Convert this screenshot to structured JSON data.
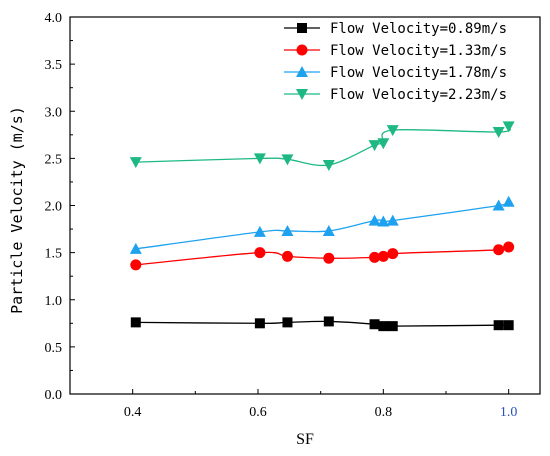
{
  "chart_data": {
    "type": "line",
    "title": "",
    "xlabel": "SF",
    "ylabel": "Particle Velocity (m/s)",
    "xlim": [
      0.3,
      1.05
    ],
    "ylim": [
      0.0,
      4.0
    ],
    "x_ticks": [
      0.4,
      0.6,
      0.8,
      1.0
    ],
    "x_tick_labels": [
      "0.4",
      "0.6",
      "0.8",
      "1.0"
    ],
    "y_ticks": [
      0.0,
      0.5,
      1.0,
      1.5,
      2.0,
      2.5,
      3.0,
      3.5,
      4.0
    ],
    "y_tick_labels": [
      "0.0",
      "0.5",
      "1.0",
      "1.5",
      "2.0",
      "2.5",
      "3.0",
      "3.5",
      "4.0"
    ],
    "legend_position": "top-right",
    "grid": false,
    "series": [
      {
        "name": "Flow Velocity=0.89m/s",
        "color": "#000000",
        "marker": "square",
        "x": [
          0.405,
          0.603,
          0.647,
          0.713,
          0.786,
          0.8,
          0.815,
          0.984,
          1.0
        ],
        "y": [
          0.76,
          0.75,
          0.76,
          0.77,
          0.74,
          0.72,
          0.72,
          0.73,
          0.73
        ]
      },
      {
        "name": "Flow Velocity=1.33m/s",
        "color": "#ff0000",
        "marker": "circle",
        "x": [
          0.405,
          0.603,
          0.647,
          0.713,
          0.786,
          0.8,
          0.815,
          0.984,
          1.0
        ],
        "y": [
          1.37,
          1.5,
          1.46,
          1.44,
          1.45,
          1.46,
          1.49,
          1.53,
          1.56
        ]
      },
      {
        "name": "Flow Velocity=1.78m/s",
        "color": "#1ea2f0",
        "marker": "triangle-up",
        "x": [
          0.405,
          0.603,
          0.647,
          0.713,
          0.786,
          0.8,
          0.815,
          0.984,
          1.0
        ],
        "y": [
          1.54,
          1.72,
          1.73,
          1.73,
          1.84,
          1.83,
          1.84,
          2.0,
          2.04
        ]
      },
      {
        "name": "Flow Velocity=2.23m/s",
        "color": "#1eb983",
        "marker": "triangle-down",
        "x": [
          0.405,
          0.603,
          0.647,
          0.713,
          0.786,
          0.8,
          0.815,
          0.984,
          1.0
        ],
        "y": [
          2.46,
          2.5,
          2.49,
          2.43,
          2.64,
          2.66,
          2.8,
          2.78,
          2.84
        ]
      }
    ]
  }
}
